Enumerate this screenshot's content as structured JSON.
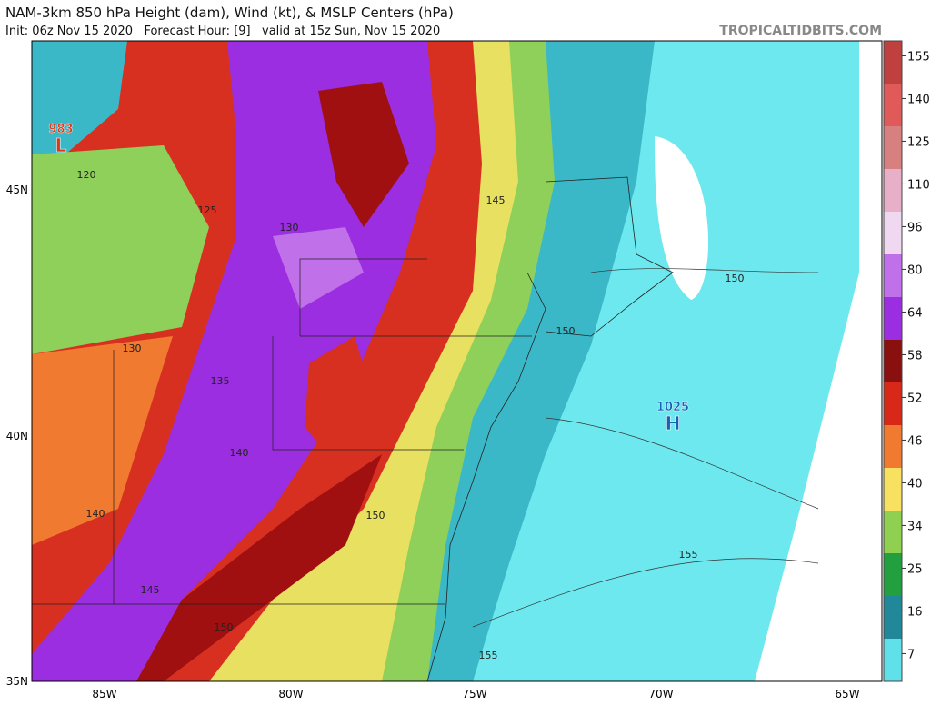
{
  "header": {
    "title": "NAM-3km 850 hPa Height (dam), Wind (kt), & MSLP Centers (hPa)",
    "subtitle": "Init: 06z Nov 15 2020   Forecast Hour: [9]   valid at 15z Sun, Nov 15 2020",
    "brand": "TROPICALTIDBITS.COM"
  },
  "map": {
    "lat_labels": [
      "45N",
      "40N",
      "35N"
    ],
    "lon_labels": [
      "85W",
      "80W",
      "75W",
      "70W",
      "65W"
    ],
    "contour_labels": [
      120,
      125,
      130,
      130,
      135,
      140,
      140,
      145,
      145,
      150,
      150,
      150,
      150,
      155,
      155
    ],
    "pressure_centers": [
      {
        "value": 983,
        "symbol": "L",
        "color": "#d83a1a"
      },
      {
        "value": 1025,
        "symbol": "H",
        "color": "#1a5fb4"
      }
    ]
  },
  "colorbar": {
    "ticks": [
      155,
      140,
      125,
      110,
      96,
      80,
      64,
      58,
      52,
      46,
      40,
      34,
      25,
      16,
      7
    ],
    "colors": [
      "#c04040",
      "#e05a5a",
      "#d88080",
      "#e8b0c8",
      "#f0d8f0",
      "#c070e8",
      "#9a2ee0",
      "#8a1010",
      "#d82818",
      "#f07a30",
      "#f8e060",
      "#90d050",
      "#22a040",
      "#208898",
      "#60e0e8"
    ]
  }
}
